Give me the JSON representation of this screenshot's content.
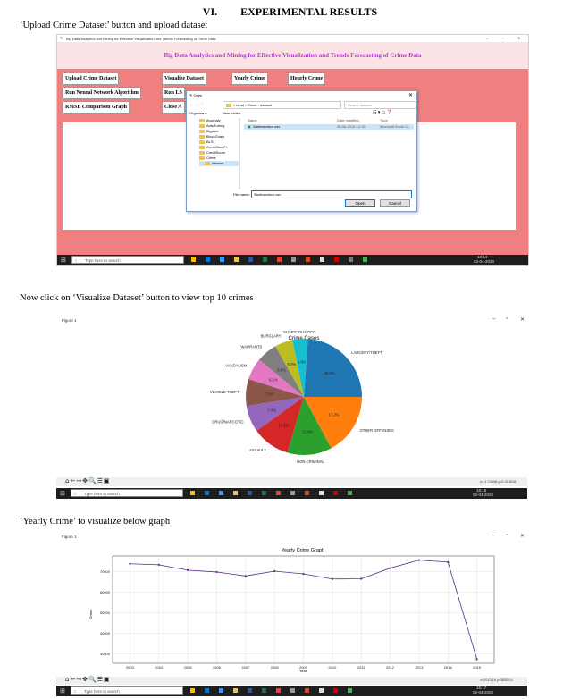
{
  "section": {
    "number": "VI.",
    "title": "EXPERIMENTAL RESULTS"
  },
  "captions": {
    "upload": "‘Upload Crime Dataset’ button and upload dataset",
    "visualize": "Now click on ‘Visualize Dataset’ button to view top 10 crimes",
    "yearly": "‘Yearly Crime’ to visualize below graph"
  },
  "app": {
    "window_title": "Big Data Analytics and Mining for Effective Visualization and Trends Forecasting of Crime Data",
    "heading": "Big Data Analytics and Mining for Effective Visualization and Trends Forecasting of Crime Data",
    "buttons": {
      "upload": "Upload Crime Dataset",
      "visualize": "Visualize Dataset",
      "yearly": "Yearly Crime",
      "hourly": "Hourly Crime",
      "nn": "Run Neural Network Algorithm",
      "lstm": "Run LS",
      "rmse": "RMSE Comparison Graph",
      "close": "Close A"
    },
    "window_controls": [
      "–",
      "▫",
      "✕"
    ]
  },
  "open_dialog": {
    "title": "Open",
    "path": [
      "kreat",
      "Crime",
      "dataset"
    ],
    "search_placeholder": "Search dataset",
    "organise": "Organise ▾",
    "new_folder": "New folder",
    "sidebar": [
      "Anomaly",
      "AutoTuning",
      "Bigdate",
      "BlockChain",
      "BLS",
      "CreditCardFr",
      "CreditScore",
      "Crime",
      "dataset"
    ],
    "columns": {
      "name": "Name",
      "date": "Date modified",
      "type": "Type"
    },
    "file": {
      "name": "Sanfrancisco.csv",
      "date": "30-06-2015 12:15",
      "type": "Microsoft Excel C..."
    },
    "file_name_label": "File name:",
    "file_name_value": "Sanfrancisco.csv",
    "open_btn": "Open",
    "cancel_btn": "Cancel"
  },
  "taskbar": {
    "search": "Type here to search",
    "time1": "18:14",
    "date1": "02-04-2020",
    "time2": "18:15",
    "date2": "02-04-2020",
    "time3": "18:17",
    "date3": "02-04-2020"
  },
  "figure1": {
    "title": "Figure 1",
    "coords": "x=-1.70608   y=0.214018"
  },
  "figure2": {
    "title": "Figure 1",
    "coords": "x=2013.16   y=36593.4"
  },
  "chart_data": [
    {
      "type": "pie",
      "title": "Crime Cases",
      "categories": [
        "LARCENY/THEFT",
        "SUSPICIOUS OCC",
        "BURGLARY",
        "WARRANTS",
        "VANDALISM",
        "VEHICLE THEFT",
        "DRUG/NARCOTIC",
        "ASSAULT",
        "NON-CRIMINAL",
        "OTHER OFFENSES"
      ],
      "values": [
        23.9,
        4.3,
        5.0,
        5.8,
        6.1,
        7.5,
        7.4,
        10.5,
        12.4,
        17.2
      ],
      "labels": [
        "23.9%",
        "4.3%",
        "5.0%",
        "5.8%",
        "6.1%",
        "7.5%",
        "7.4%",
        "10.5%",
        "12.4%",
        "17.2%"
      ],
      "colors": [
        "#1f77b4",
        "#17becf",
        "#bcbd22",
        "#7f7f7f",
        "#e377c2",
        "#8c564b",
        "#9467bd",
        "#d62728",
        "#2ca02c",
        "#ff7f0e"
      ]
    },
    {
      "type": "line",
      "title": "Yearly Crime Graph",
      "xlabel": "Year",
      "ylabel": "Crime",
      "x": [
        2003,
        2004,
        2005,
        2006,
        2007,
        2008,
        2009,
        2010,
        2011,
        2012,
        2013,
        2014,
        2015
      ],
      "values": [
        73900,
        73400,
        70800,
        69900,
        68000,
        70300,
        69000,
        66500,
        66600,
        71800,
        75700,
        74700,
        27500
      ],
      "xticks": [
        2003,
        2004,
        2005,
        2006,
        2007,
        2008,
        2009,
        2010,
        2011,
        2012,
        2013,
        2014,
        2015
      ],
      "yticks": [
        30000,
        40000,
        50000,
        60000,
        70000
      ],
      "ylim": [
        25500,
        77700
      ],
      "xlim": [
        2002.4,
        2015.6
      ],
      "grid": true,
      "color": "#5b2c8f"
    }
  ]
}
